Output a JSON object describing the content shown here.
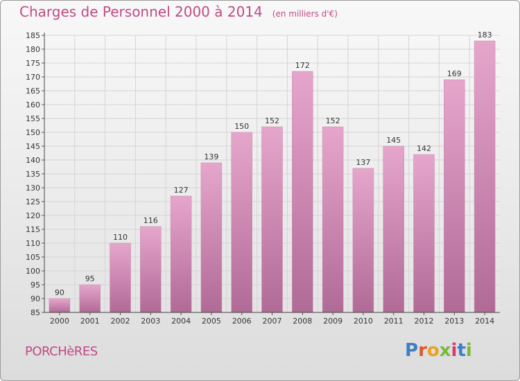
{
  "title": "Charges de Personnel 2000 à 2014",
  "subtitle": "(en milliers d'€)",
  "place": "PORCHèRES",
  "logo": {
    "text": "Proxiti",
    "colors": [
      "#3d7fc4",
      "#e0582a",
      "#e8a321",
      "#7bb83a",
      "#d33b6b",
      "#3d7fc4",
      "#7bb83a"
    ]
  },
  "chart_data": {
    "type": "bar",
    "categories": [
      "2000",
      "2001",
      "2002",
      "2003",
      "2004",
      "2005",
      "2006",
      "2007",
      "2008",
      "2009",
      "2010",
      "2011",
      "2012",
      "2013",
      "2014"
    ],
    "values": [
      90,
      95,
      110,
      116,
      127,
      139,
      150,
      152,
      172,
      152,
      137,
      145,
      142,
      169,
      183
    ],
    "ylim": [
      85,
      185
    ],
    "yticks": [
      85,
      90,
      95,
      100,
      105,
      110,
      115,
      120,
      125,
      130,
      135,
      140,
      145,
      150,
      155,
      160,
      165,
      170,
      175,
      180,
      185
    ],
    "grid": true,
    "bar_color_top": "#e6a6cc",
    "bar_color_bottom": "#b06a96"
  }
}
